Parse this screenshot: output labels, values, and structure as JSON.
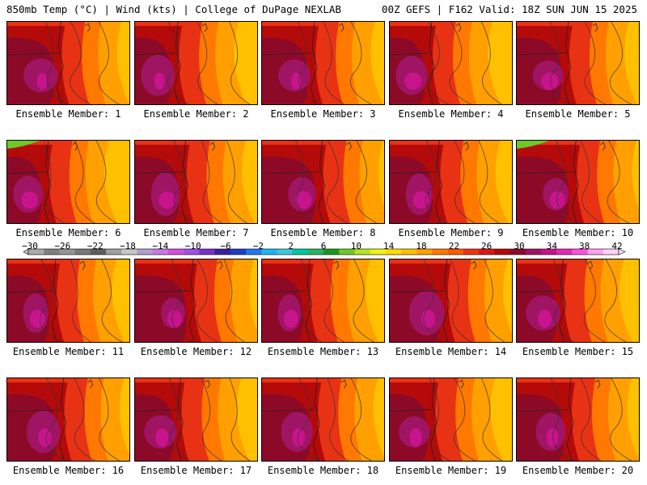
{
  "header": {
    "left": "850mb Temp (°C) | Wind (kts) | College of DuPage NEXLAB",
    "right": "00Z GEFS | F162 Valid: 18Z SUN JUN 15 2025"
  },
  "members": [
    {
      "label": "Ensemble Member: 1"
    },
    {
      "label": "Ensemble Member: 2"
    },
    {
      "label": "Ensemble Member: 3"
    },
    {
      "label": "Ensemble Member: 4"
    },
    {
      "label": "Ensemble Member: 5"
    },
    {
      "label": "Ensemble Member: 6"
    },
    {
      "label": "Ensemble Member: 7"
    },
    {
      "label": "Ensemble Member: 8"
    },
    {
      "label": "Ensemble Member: 9"
    },
    {
      "label": "Ensemble Member: 10"
    },
    {
      "label": "Ensemble Member: 11"
    },
    {
      "label": "Ensemble Member: 12"
    },
    {
      "label": "Ensemble Member: 13"
    },
    {
      "label": "Ensemble Member: 14"
    },
    {
      "label": "Ensemble Member: 15"
    },
    {
      "label": "Ensemble Member: 16"
    },
    {
      "label": "Ensemble Member: 17"
    },
    {
      "label": "Ensemble Member: 18"
    },
    {
      "label": "Ensemble Member: 19"
    },
    {
      "label": "Ensemble Member: 20"
    }
  ],
  "colorbar": {
    "labels": [
      "−30",
      "−26",
      "−22",
      "−18",
      "−14",
      "−10",
      "−6",
      "−2",
      "2",
      "6",
      "10",
      "14",
      "18",
      "22",
      "26",
      "30",
      "34",
      "38",
      "42"
    ],
    "colors": [
      "#aaaaaa",
      "#808080",
      "#969696",
      "#787878",
      "#5f5f5f",
      "#a0a0a0",
      "#c8c8c8",
      "#b0a0d0",
      "#c878e6",
      "#d250dc",
      "#a050e6",
      "#7830c8",
      "#3c1ea0",
      "#1e3cc8",
      "#1e78f0",
      "#1eb4f0",
      "#3cc8dc",
      "#00c8a0",
      "#28b464",
      "#1e961e",
      "#6ec828",
      "#b4e61e",
      "#f0f014",
      "#ffdc00",
      "#ffbe00",
      "#ffa000",
      "#ff7800",
      "#ff5a00",
      "#f03214",
      "#dc1414",
      "#b40a0a",
      "#8c0a28",
      "#a01464",
      "#c8148c",
      "#e628b4",
      "#ff50dc",
      "#ffa0f0",
      "#ffd2fa"
    ]
  }
}
